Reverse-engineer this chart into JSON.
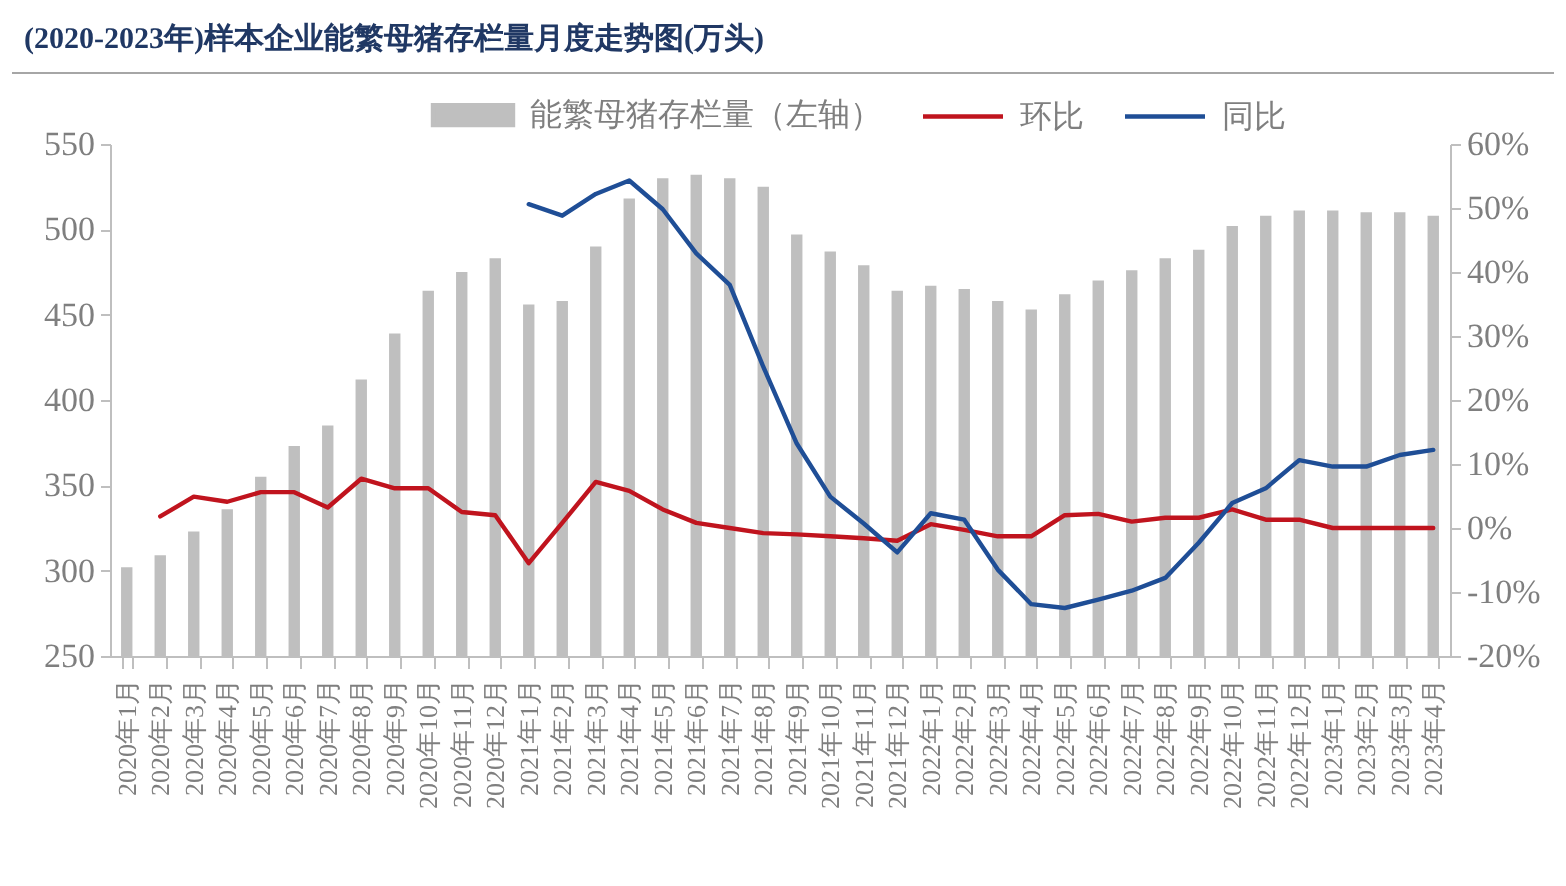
{
  "chart_data": {
    "type": "bar",
    "title": "(2020-2023年)样本企业能繁母猪存栏量月度走势图(万头)",
    "categories": [
      "2020年1月",
      "2020年2月",
      "2020年3月",
      "2020年4月",
      "2020年5月",
      "2020年6月",
      "2020年7月",
      "2020年8月",
      "2020年9月",
      "2020年10月",
      "2020年11月",
      "2020年12月",
      "2021年1月",
      "2021年2月",
      "2021年3月",
      "2021年4月",
      "2021年5月",
      "2021年6月",
      "2021年7月",
      "2021年8月",
      "2021年9月",
      "2021年10月",
      "2021年11月",
      "2021年12月",
      "2022年1月",
      "2022年2月",
      "2022年3月",
      "2022年4月",
      "2022年5月",
      "2022年6月",
      "2022年7月",
      "2022年8月",
      "2022年9月",
      "2022年10月",
      "2022年11月",
      "2022年12月",
      "2023年1月",
      "2023年2月",
      "2023年3月",
      "2023年4月"
    ],
    "series": [
      {
        "name": "能繁母猪存栏量（左轴）",
        "color": "#bfbfbf",
        "values": [
          302,
          309,
          323,
          336,
          355,
          373,
          385,
          412,
          439,
          464,
          475,
          483,
          456,
          458,
          490,
          518,
          530,
          532,
          530,
          525,
          497,
          487,
          479,
          464,
          467,
          465,
          458,
          453,
          462,
          470,
          476,
          483,
          488,
          502,
          508,
          511,
          511,
          510,
          510,
          508
        ]
      },
      {
        "name": "环比",
        "type": "line",
        "axis": "y2",
        "color": "#c0141e",
        "values": [
          null,
          1.8,
          4.9,
          4.1,
          5.6,
          5.6,
          3.2,
          7.7,
          6.2,
          6.2,
          2.5,
          2.0,
          -5.5,
          0.8,
          7.2,
          5.8,
          2.9,
          0.8,
          0,
          -0.8,
          -1.0,
          -1.3,
          -1.6,
          -2.0,
          0.6,
          -0.3,
          -1.3,
          -1.3,
          2.0,
          2.2,
          1.0,
          1.6,
          1.6,
          2.9,
          1.3,
          1.3,
          0,
          0,
          0,
          0
        ]
      },
      {
        "name": "同比",
        "type": "line",
        "axis": "y2",
        "color": "#1f4e96",
        "values": [
          null,
          null,
          null,
          null,
          null,
          null,
          null,
          null,
          null,
          null,
          null,
          null,
          50.6,
          48.8,
          52.2,
          54.3,
          49.8,
          42.9,
          38.0,
          25.2,
          13.2,
          4.9,
          0.7,
          -3.8,
          2.3,
          1.3,
          -6.5,
          -11.9,
          -12.5,
          -11.2,
          -9.8,
          -7.8,
          -2.3,
          3.9,
          6.2,
          10.6,
          9.6,
          9.6,
          11.4,
          12.2
        ]
      }
    ],
    "ylim": [
      250,
      550
    ],
    "yticks": [
      250,
      300,
      350,
      400,
      450,
      500,
      550
    ],
    "y2lim": [
      -20,
      60
    ],
    "y2ticks": [
      {
        "value": -20,
        "label": "-20%"
      },
      {
        "value": -10,
        "label": "-10%"
      },
      {
        "value": 0,
        "label": "0%"
      },
      {
        "value": 10,
        "label": "10%"
      },
      {
        "value": 20,
        "label": "20%"
      },
      {
        "value": 30,
        "label": "30%"
      },
      {
        "value": 40,
        "label": "40%"
      },
      {
        "value": 50,
        "label": "50%"
      },
      {
        "value": 60,
        "label": "60%"
      }
    ],
    "legend": "top"
  }
}
